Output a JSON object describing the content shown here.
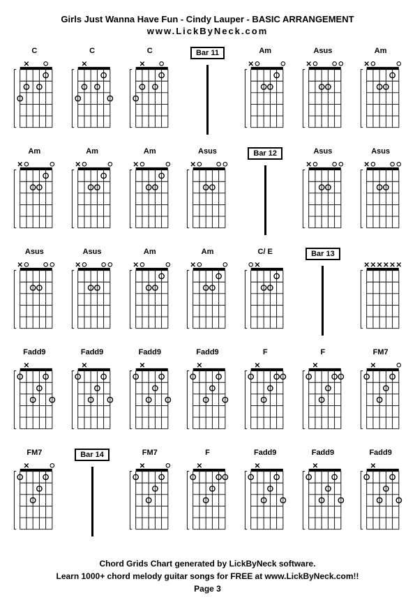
{
  "title": "Girls Just Wanna Have Fun - Cindy Lauper - BASIC ARRANGEMENT",
  "subtitle": "www.LickByNeck.com",
  "footer_line1": "Chord Grids Chart generated by LickByNeck software.",
  "footer_line2": "Learn 1000+ chord melody guitar songs for FREE at www.LickByNeck.com!!",
  "page_label": "Page 3",
  "colors": {
    "background": "#ffffff",
    "line": "#000000",
    "text": "#000000"
  },
  "chord_diagram": {
    "strings": 6,
    "frets": 5,
    "width": 50,
    "height": 90,
    "nut_height": 4,
    "dot_radius": 4,
    "open_radius": 3
  },
  "grid_columns": 7,
  "cells": [
    {
      "type": "chord",
      "name": "C",
      "top": [
        "",
        "x",
        "",
        "",
        "o",
        ""
      ],
      "dots": [
        [
          5,
          1
        ],
        [
          2,
          2
        ],
        [
          4,
          2
        ],
        [
          1,
          3
        ]
      ]
    },
    {
      "type": "chord",
      "name": "C",
      "top": [
        "",
        "x",
        "",
        "",
        "",
        ""
      ],
      "dots": [
        [
          5,
          1
        ],
        [
          2,
          2
        ],
        [
          4,
          2
        ],
        [
          1,
          3
        ],
        [
          6,
          3
        ]
      ]
    },
    {
      "type": "chord",
      "name": "C",
      "top": [
        "",
        "x",
        "",
        "",
        "o",
        ""
      ],
      "dots": [
        [
          5,
          1
        ],
        [
          2,
          2
        ],
        [
          4,
          2
        ],
        [
          1,
          3
        ]
      ]
    },
    {
      "type": "bar",
      "label": "Bar 11"
    },
    {
      "type": "chord",
      "name": "Am",
      "top": [
        "x",
        "o",
        "",
        "",
        "",
        "o"
      ],
      "dots": [
        [
          5,
          1
        ],
        [
          3,
          2
        ],
        [
          4,
          2
        ]
      ]
    },
    {
      "type": "chord",
      "name": "Asus",
      "top": [
        "x",
        "o",
        "",
        "",
        "o",
        "o"
      ],
      "dots": [
        [
          3,
          2
        ],
        [
          4,
          2
        ]
      ]
    },
    {
      "type": "chord",
      "name": "Am",
      "top": [
        "x",
        "o",
        "",
        "",
        "",
        "o"
      ],
      "dots": [
        [
          5,
          1
        ],
        [
          3,
          2
        ],
        [
          4,
          2
        ]
      ]
    },
    {
      "type": "chord",
      "name": "Am",
      "top": [
        "x",
        "o",
        "",
        "",
        "",
        "o"
      ],
      "dots": [
        [
          5,
          1
        ],
        [
          3,
          2
        ],
        [
          4,
          2
        ]
      ]
    },
    {
      "type": "chord",
      "name": "Am",
      "top": [
        "x",
        "o",
        "",
        "",
        "",
        "o"
      ],
      "dots": [
        [
          5,
          1
        ],
        [
          3,
          2
        ],
        [
          4,
          2
        ]
      ]
    },
    {
      "type": "chord",
      "name": "Am",
      "top": [
        "x",
        "o",
        "",
        "",
        "",
        "o"
      ],
      "dots": [
        [
          5,
          1
        ],
        [
          3,
          2
        ],
        [
          4,
          2
        ]
      ]
    },
    {
      "type": "chord",
      "name": "Asus",
      "top": [
        "x",
        "o",
        "",
        "",
        "o",
        "o"
      ],
      "dots": [
        [
          3,
          2
        ],
        [
          4,
          2
        ]
      ]
    },
    {
      "type": "bar",
      "label": "Bar 12"
    },
    {
      "type": "chord",
      "name": "Asus",
      "top": [
        "x",
        "o",
        "",
        "",
        "o",
        "o"
      ],
      "dots": [
        [
          3,
          2
        ],
        [
          4,
          2
        ]
      ]
    },
    {
      "type": "chord",
      "name": "Asus",
      "top": [
        "x",
        "o",
        "",
        "",
        "o",
        "o"
      ],
      "dots": [
        [
          3,
          2
        ],
        [
          4,
          2
        ]
      ]
    },
    {
      "type": "chord",
      "name": "Asus",
      "top": [
        "x",
        "o",
        "",
        "",
        "o",
        "o"
      ],
      "dots": [
        [
          3,
          2
        ],
        [
          4,
          2
        ]
      ]
    },
    {
      "type": "chord",
      "name": "Asus",
      "top": [
        "x",
        "o",
        "",
        "",
        "o",
        "o"
      ],
      "dots": [
        [
          3,
          2
        ],
        [
          4,
          2
        ]
      ]
    },
    {
      "type": "chord",
      "name": "Am",
      "top": [
        "x",
        "o",
        "",
        "",
        "",
        "o"
      ],
      "dots": [
        [
          5,
          1
        ],
        [
          3,
          2
        ],
        [
          4,
          2
        ]
      ]
    },
    {
      "type": "chord",
      "name": "Am",
      "top": [
        "x",
        "o",
        "",
        "",
        "",
        "o"
      ],
      "dots": [
        [
          5,
          1
        ],
        [
          3,
          2
        ],
        [
          4,
          2
        ]
      ]
    },
    {
      "type": "chord",
      "name": "C/ E",
      "top": [
        "o",
        "x",
        "",
        "",
        "",
        ""
      ],
      "dots": [
        [
          5,
          1
        ],
        [
          3,
          2
        ],
        [
          4,
          2
        ]
      ]
    },
    {
      "type": "bar",
      "label": "Bar 13"
    },
    {
      "type": "chord",
      "name": "",
      "top": [
        "x",
        "x",
        "x",
        "x",
        "x",
        "x"
      ],
      "dots": []
    },
    {
      "type": "chord",
      "name": "Fadd9",
      "top": [
        "",
        "x",
        "",
        "",
        "",
        ""
      ],
      "dots": [
        [
          1,
          1
        ],
        [
          5,
          1
        ],
        [
          4,
          2
        ],
        [
          3,
          3
        ],
        [
          6,
          3
        ]
      ]
    },
    {
      "type": "chord",
      "name": "Fadd9",
      "top": [
        "",
        "x",
        "",
        "",
        "",
        ""
      ],
      "dots": [
        [
          1,
          1
        ],
        [
          5,
          1
        ],
        [
          4,
          2
        ],
        [
          3,
          3
        ],
        [
          6,
          3
        ]
      ]
    },
    {
      "type": "chord",
      "name": "Fadd9",
      "top": [
        "",
        "x",
        "",
        "",
        "",
        ""
      ],
      "dots": [
        [
          1,
          1
        ],
        [
          5,
          1
        ],
        [
          4,
          2
        ],
        [
          3,
          3
        ],
        [
          6,
          3
        ]
      ]
    },
    {
      "type": "chord",
      "name": "Fadd9",
      "top": [
        "",
        "x",
        "",
        "",
        "",
        ""
      ],
      "dots": [
        [
          1,
          1
        ],
        [
          5,
          1
        ],
        [
          4,
          2
        ],
        [
          3,
          3
        ],
        [
          6,
          3
        ]
      ]
    },
    {
      "type": "chord",
      "name": "F",
      "top": [
        "",
        "x",
        "",
        "",
        "",
        ""
      ],
      "dots": [
        [
          1,
          1
        ],
        [
          5,
          1
        ],
        [
          6,
          1
        ],
        [
          4,
          2
        ],
        [
          3,
          3
        ]
      ]
    },
    {
      "type": "chord",
      "name": "F",
      "top": [
        "",
        "x",
        "",
        "",
        "",
        ""
      ],
      "dots": [
        [
          1,
          1
        ],
        [
          5,
          1
        ],
        [
          6,
          1
        ],
        [
          4,
          2
        ],
        [
          3,
          3
        ]
      ]
    },
    {
      "type": "chord",
      "name": "FM7",
      "top": [
        "",
        "x",
        "",
        "",
        "",
        "o"
      ],
      "dots": [
        [
          1,
          1
        ],
        [
          5,
          1
        ],
        [
          4,
          2
        ],
        [
          3,
          3
        ]
      ]
    },
    {
      "type": "chord",
      "name": "FM7",
      "top": [
        "",
        "x",
        "",
        "",
        "",
        "o"
      ],
      "dots": [
        [
          1,
          1
        ],
        [
          5,
          1
        ],
        [
          4,
          2
        ],
        [
          3,
          3
        ]
      ]
    },
    {
      "type": "bar",
      "label": "Bar 14"
    },
    {
      "type": "chord",
      "name": "FM7",
      "top": [
        "",
        "x",
        "",
        "",
        "",
        "o"
      ],
      "dots": [
        [
          1,
          1
        ],
        [
          5,
          1
        ],
        [
          4,
          2
        ],
        [
          3,
          3
        ]
      ]
    },
    {
      "type": "chord",
      "name": "F",
      "top": [
        "",
        "x",
        "",
        "",
        "",
        ""
      ],
      "dots": [
        [
          1,
          1
        ],
        [
          5,
          1
        ],
        [
          6,
          1
        ],
        [
          4,
          2
        ],
        [
          3,
          3
        ]
      ]
    },
    {
      "type": "chord",
      "name": "Fadd9",
      "top": [
        "",
        "x",
        "",
        "",
        "",
        ""
      ],
      "dots": [
        [
          1,
          1
        ],
        [
          5,
          1
        ],
        [
          4,
          2
        ],
        [
          3,
          3
        ],
        [
          6,
          3
        ]
      ]
    },
    {
      "type": "chord",
      "name": "Fadd9",
      "top": [
        "",
        "x",
        "",
        "",
        "",
        ""
      ],
      "dots": [
        [
          1,
          1
        ],
        [
          5,
          1
        ],
        [
          4,
          2
        ],
        [
          3,
          3
        ],
        [
          6,
          3
        ]
      ]
    },
    {
      "type": "chord",
      "name": "Fadd9",
      "top": [
        "",
        "x",
        "",
        "",
        "",
        ""
      ],
      "dots": [
        [
          1,
          1
        ],
        [
          5,
          1
        ],
        [
          4,
          2
        ],
        [
          3,
          3
        ],
        [
          6,
          3
        ]
      ]
    }
  ]
}
